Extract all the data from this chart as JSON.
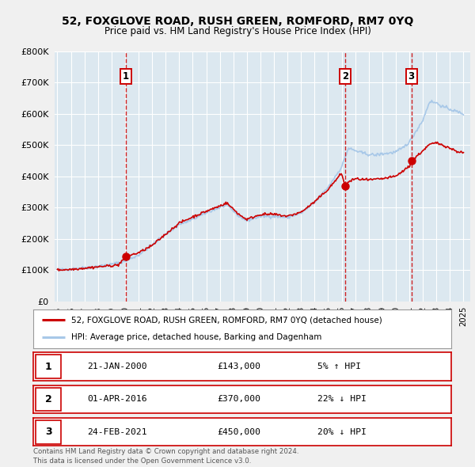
{
  "title": "52, FOXGLOVE ROAD, RUSH GREEN, ROMFORD, RM7 0YQ",
  "subtitle": "Price paid vs. HM Land Registry's House Price Index (HPI)",
  "bg_color": "#f0f0f0",
  "plot_bg_color": "#dce8f0",
  "grid_color": "#ffffff",
  "ylim": [
    0,
    800000
  ],
  "yticks": [
    0,
    100000,
    200000,
    300000,
    400000,
    500000,
    600000,
    700000,
    800000
  ],
  "transactions": [
    {
      "date_num": 2000.06,
      "price": 143000,
      "label": "1"
    },
    {
      "date_num": 2016.25,
      "price": 370000,
      "label": "2"
    },
    {
      "date_num": 2021.15,
      "price": 450000,
      "label": "3"
    }
  ],
  "vlines": [
    2000.06,
    2016.25,
    2021.15
  ],
  "hpi_color": "#a8c8e8",
  "price_color": "#cc0000",
  "marker_color": "#cc0000",
  "vline_color": "#cc0000",
  "legend_items": [
    {
      "label": "52, FOXGLOVE ROAD, RUSH GREEN, ROMFORD, RM7 0YQ (detached house)",
      "color": "#cc0000"
    },
    {
      "label": "HPI: Average price, detached house, Barking and Dagenham",
      "color": "#a8c8e8"
    }
  ],
  "table_rows": [
    {
      "num": "1",
      "date": "21-JAN-2000",
      "price": "£143,000",
      "change": "5% ↑ HPI"
    },
    {
      "num": "2",
      "date": "01-APR-2016",
      "price": "£370,000",
      "change": "22% ↓ HPI"
    },
    {
      "num": "3",
      "date": "24-FEB-2021",
      "price": "£450,000",
      "change": "20% ↓ HPI"
    }
  ],
  "footer": "Contains HM Land Registry data © Crown copyright and database right 2024.\nThis data is licensed under the Open Government Licence v3.0.",
  "xmin": 1994.8,
  "xmax": 2025.5,
  "xticks": [
    1995,
    1996,
    1997,
    1998,
    1999,
    2000,
    2001,
    2002,
    2003,
    2004,
    2005,
    2006,
    2007,
    2008,
    2009,
    2010,
    2011,
    2012,
    2013,
    2014,
    2015,
    2016,
    2017,
    2018,
    2019,
    2020,
    2021,
    2022,
    2023,
    2024,
    2025
  ],
  "hpi_anchors": [
    [
      1995.0,
      100000
    ],
    [
      1996.0,
      103000
    ],
    [
      1997.0,
      107000
    ],
    [
      1998.0,
      112000
    ],
    [
      1999.0,
      118000
    ],
    [
      2000.0,
      128000
    ],
    [
      2001.0,
      148000
    ],
    [
      2002.0,
      180000
    ],
    [
      2003.0,
      215000
    ],
    [
      2004.0,
      245000
    ],
    [
      2005.0,
      262000
    ],
    [
      2006.0,
      283000
    ],
    [
      2007.0,
      300000
    ],
    [
      2007.5,
      308000
    ],
    [
      2008.5,
      270000
    ],
    [
      2009.0,
      258000
    ],
    [
      2009.5,
      265000
    ],
    [
      2010.0,
      272000
    ],
    [
      2011.0,
      272000
    ],
    [
      2012.0,
      268000
    ],
    [
      2013.0,
      282000
    ],
    [
      2014.0,
      315000
    ],
    [
      2015.0,
      365000
    ],
    [
      2016.0,
      430000
    ],
    [
      2016.5,
      490000
    ],
    [
      2017.0,
      482000
    ],
    [
      2017.5,
      475000
    ],
    [
      2018.0,
      470000
    ],
    [
      2018.5,
      468000
    ],
    [
      2019.0,
      472000
    ],
    [
      2019.5,
      474000
    ],
    [
      2020.0,
      478000
    ],
    [
      2020.5,
      490000
    ],
    [
      2021.0,
      510000
    ],
    [
      2021.5,
      545000
    ],
    [
      2022.0,
      580000
    ],
    [
      2022.5,
      640000
    ],
    [
      2023.0,
      635000
    ],
    [
      2023.5,
      622000
    ],
    [
      2024.0,
      615000
    ],
    [
      2024.5,
      607000
    ],
    [
      2025.0,
      600000
    ]
  ],
  "price_anchors": [
    [
      1995.0,
      100000
    ],
    [
      1996.0,
      102000
    ],
    [
      1997.0,
      106000
    ],
    [
      1998.0,
      110000
    ],
    [
      1999.5,
      116000
    ],
    [
      2000.06,
      143000
    ],
    [
      2001.0,
      155000
    ],
    [
      2002.0,
      178000
    ],
    [
      2003.0,
      215000
    ],
    [
      2004.0,
      250000
    ],
    [
      2005.0,
      270000
    ],
    [
      2006.0,
      288000
    ],
    [
      2007.0,
      305000
    ],
    [
      2007.5,
      315000
    ],
    [
      2008.5,
      275000
    ],
    [
      2009.0,
      262000
    ],
    [
      2009.5,
      270000
    ],
    [
      2010.0,
      278000
    ],
    [
      2011.0,
      278000
    ],
    [
      2012.0,
      272000
    ],
    [
      2013.0,
      285000
    ],
    [
      2014.0,
      318000
    ],
    [
      2015.0,
      358000
    ],
    [
      2016.0,
      410000
    ],
    [
      2016.25,
      370000
    ],
    [
      2016.5,
      382000
    ],
    [
      2017.0,
      392000
    ],
    [
      2018.0,
      388000
    ],
    [
      2019.0,
      392000
    ],
    [
      2020.0,
      400000
    ],
    [
      2021.0,
      432000
    ],
    [
      2021.15,
      450000
    ],
    [
      2021.5,
      462000
    ],
    [
      2022.0,
      482000
    ],
    [
      2022.5,
      502000
    ],
    [
      2023.0,
      507000
    ],
    [
      2023.5,
      500000
    ],
    [
      2024.0,
      490000
    ],
    [
      2024.5,
      480000
    ],
    [
      2025.0,
      475000
    ]
  ]
}
